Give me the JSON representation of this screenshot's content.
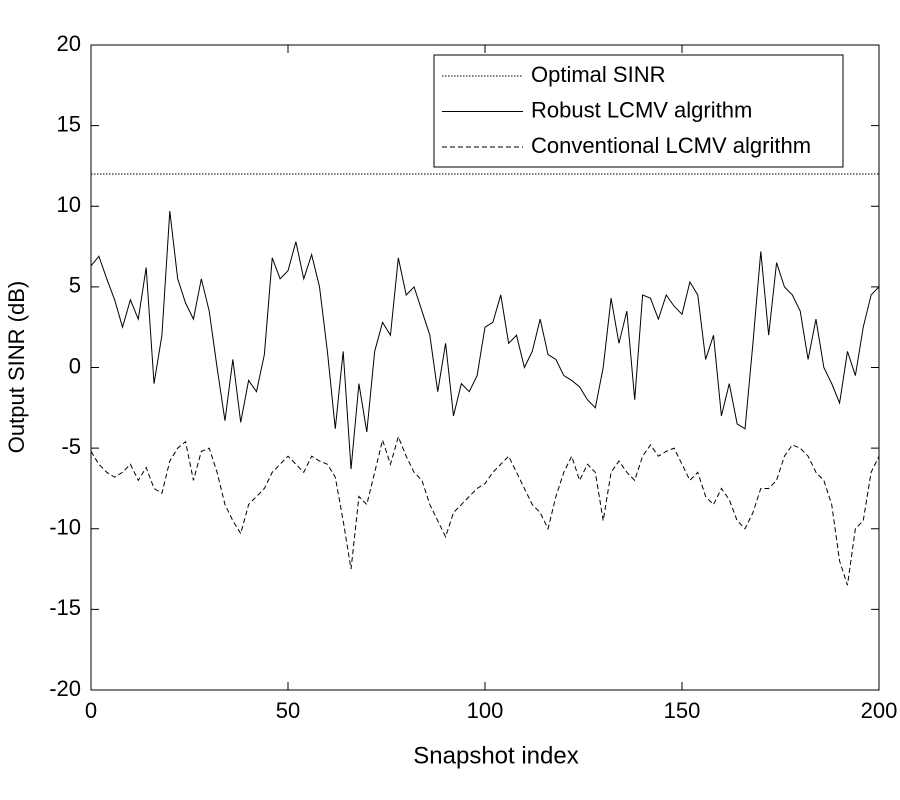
{
  "chart_data": {
    "type": "line",
    "x_label": "Snapshot index",
    "y_label": "Output SINR (dB)",
    "xlim": [
      0,
      200
    ],
    "xticks": [
      0,
      50,
      100,
      150,
      200
    ],
    "ylim": [
      -20,
      20
    ],
    "yticks": [
      -20,
      -15,
      -10,
      -5,
      0,
      5,
      10,
      15,
      20
    ],
    "legend": "upper right",
    "x": [
      0,
      2,
      4,
      6,
      8,
      10,
      12,
      14,
      16,
      18,
      20,
      22,
      24,
      26,
      28,
      30,
      32,
      34,
      36,
      38,
      40,
      42,
      44,
      46,
      48,
      50,
      52,
      54,
      56,
      58,
      60,
      62,
      64,
      66,
      68,
      70,
      72,
      74,
      76,
      78,
      80,
      82,
      84,
      86,
      88,
      90,
      92,
      94,
      96,
      98,
      100,
      102,
      104,
      106,
      108,
      110,
      112,
      114,
      116,
      118,
      120,
      122,
      124,
      126,
      128,
      130,
      132,
      134,
      136,
      138,
      140,
      142,
      144,
      146,
      148,
      150,
      152,
      154,
      156,
      158,
      160,
      162,
      164,
      166,
      168,
      170,
      172,
      174,
      176,
      178,
      180,
      182,
      184,
      186,
      188,
      190,
      192,
      194,
      196,
      198,
      200
    ],
    "series": [
      {
        "name": "Optimal SINR",
        "color": "#000000",
        "style": "dotted",
        "values": [
          12,
          12,
          12,
          12,
          12,
          12,
          12,
          12,
          12,
          12,
          12,
          12,
          12,
          12,
          12,
          12,
          12,
          12,
          12,
          12,
          12,
          12,
          12,
          12,
          12,
          12,
          12,
          12,
          12,
          12,
          12,
          12,
          12,
          12,
          12,
          12,
          12,
          12,
          12,
          12,
          12,
          12,
          12,
          12,
          12,
          12,
          12,
          12,
          12,
          12,
          12,
          12,
          12,
          12,
          12,
          12,
          12,
          12,
          12,
          12,
          12,
          12,
          12,
          12,
          12,
          12,
          12,
          12,
          12,
          12,
          12,
          12,
          12,
          12,
          12,
          12,
          12,
          12,
          12,
          12,
          12,
          12,
          12,
          12,
          12,
          12,
          12,
          12,
          12,
          12,
          12,
          12,
          12,
          12,
          12,
          12,
          12,
          12,
          12,
          12,
          12
        ]
      },
      {
        "name": "Robust LCMV algrithm",
        "color": "#000000",
        "style": "solid",
        "values": [
          6.3,
          6.9,
          5.5,
          4.2,
          2.5,
          4.2,
          3.0,
          6.2,
          -1.0,
          2.0,
          9.7,
          5.5,
          4.0,
          3.0,
          5.5,
          3.5,
          0.0,
          -3.3,
          0.5,
          -3.4,
          -0.8,
          -1.5,
          0.8,
          6.8,
          5.5,
          6.0,
          7.8,
          5.5,
          7.0,
          5.0,
          1.0,
          -3.8,
          1.0,
          -6.3,
          -1.0,
          -4.0,
          1.0,
          2.8,
          2.0,
          6.8,
          4.5,
          5.0,
          3.5,
          2.0,
          -1.5,
          1.5,
          -3.0,
          -1.0,
          -1.5,
          -0.5,
          2.5,
          2.8,
          4.5,
          1.5,
          2.0,
          0.0,
          1.0,
          3.0,
          0.8,
          0.5,
          -0.5,
          -0.8,
          -1.2,
          -2.0,
          -2.5,
          0.0,
          4.3,
          1.5,
          3.5,
          -2.0,
          4.5,
          4.3,
          3.0,
          4.5,
          3.8,
          3.3,
          5.3,
          4.5,
          0.5,
          2.0,
          -3.0,
          -1.0,
          -3.5,
          -3.8,
          1.5,
          7.2,
          2.0,
          6.5,
          5.0,
          4.5,
          3.5,
          0.5,
          3.0,
          0.0,
          -1.0,
          -2.2,
          1.0,
          -0.5,
          2.5,
          4.5,
          5.0
        ]
      },
      {
        "name": "Conventional LCMV algrithm",
        "color": "#000000",
        "style": "dashed",
        "values": [
          -5.2,
          -6.0,
          -6.5,
          -6.8,
          -6.5,
          -6.0,
          -7.0,
          -6.2,
          -7.5,
          -7.8,
          -5.8,
          -5.0,
          -4.6,
          -7.0,
          -5.2,
          -5.0,
          -6.5,
          -8.5,
          -9.5,
          -10.3,
          -8.5,
          -8.0,
          -7.5,
          -6.5,
          -6.0,
          -5.5,
          -6.0,
          -6.5,
          -5.5,
          -5.8,
          -6.0,
          -6.8,
          -9.5,
          -12.5,
          -8.0,
          -8.5,
          -6.5,
          -4.5,
          -6.0,
          -4.3,
          -5.5,
          -6.5,
          -7.0,
          -8.5,
          -9.5,
          -10.5,
          -9.0,
          -8.5,
          -8.0,
          -7.5,
          -7.2,
          -6.5,
          -6.0,
          -5.5,
          -6.5,
          -7.5,
          -8.5,
          -9.0,
          -10.0,
          -8.0,
          -6.5,
          -5.5,
          -7.0,
          -6.0,
          -6.5,
          -9.5,
          -6.5,
          -5.8,
          -6.5,
          -7.0,
          -5.5,
          -4.8,
          -5.5,
          -5.2,
          -5.0,
          -6.0,
          -7.0,
          -6.5,
          -8.0,
          -8.5,
          -7.5,
          -8.2,
          -9.5,
          -10.0,
          -9.0,
          -7.5,
          -7.5,
          -7.0,
          -5.5,
          -4.8,
          -5.0,
          -5.5,
          -6.5,
          -7.0,
          -8.5,
          -12.0,
          -13.5,
          -10.0,
          -9.5,
          -6.5,
          -5.5
        ]
      }
    ]
  }
}
